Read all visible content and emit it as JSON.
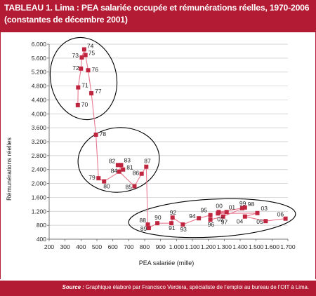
{
  "title": {
    "line1": "TABLEAU 1. Lima : PEA salariée occupée et rémunérations réelles, 1970-2006",
    "line2": "(constantes de décembre 2001)"
  },
  "source": {
    "prefix": "Source :",
    "text": "Graphique élaboré par Francisco Verdera, spécialiste de l’emploi au bureau de l’OIT à Lima."
  },
  "colors": {
    "accent": "#b31b34",
    "marker": "#c0253f",
    "line": "#e87a90"
  },
  "chart_data": {
    "type": "scatter",
    "xlabel": "PEA salariée (mille)",
    "ylabel": "Rémunérations réelles",
    "xlim": [
      200,
      1700
    ],
    "ylim": [
      400,
      6000
    ],
    "x_ticks": [
      "200",
      "300",
      "400",
      "500",
      "600",
      "700",
      "800",
      "900",
      "1.000",
      "1.100",
      "1.200",
      "1.300",
      "1.400",
      "1.500",
      "1.600",
      "1.700"
    ],
    "y_ticks": [
      "6.000",
      "5.600",
      "5.200",
      "4.800",
      "4.400",
      "4.000",
      "3.600",
      "3.200",
      "2.800",
      "2.400",
      "2.000",
      "1.600",
      "1.200",
      "800",
      "400"
    ],
    "grid": true,
    "connected": true,
    "points": [
      {
        "label": "70",
        "x": 380,
        "y": 4250
      },
      {
        "label": "71",
        "x": 382,
        "y": 4760
      },
      {
        "label": "72",
        "x": 400,
        "y": 5300
      },
      {
        "label": "73",
        "x": 405,
        "y": 5620
      },
      {
        "label": "74",
        "x": 420,
        "y": 5850
      },
      {
        "label": "75",
        "x": 428,
        "y": 5690
      },
      {
        "label": "76",
        "x": 445,
        "y": 5250
      },
      {
        "label": "77",
        "x": 465,
        "y": 4590
      },
      {
        "label": "78",
        "x": 494,
        "y": 3400
      },
      {
        "label": "79",
        "x": 510,
        "y": 2150
      },
      {
        "label": "80",
        "x": 545,
        "y": 2060
      },
      {
        "label": "81",
        "x": 664,
        "y": 2400
      },
      {
        "label": "82",
        "x": 632,
        "y": 2530
      },
      {
        "label": "83",
        "x": 652,
        "y": 2530
      },
      {
        "label": "84",
        "x": 640,
        "y": 2340
      },
      {
        "label": "85",
        "x": 736,
        "y": 1920
      },
      {
        "label": "86",
        "x": 781,
        "y": 2280
      },
      {
        "label": "87",
        "x": 810,
        "y": 2480
      },
      {
        "label": "88",
        "x": 820,
        "y": 820
      },
      {
        "label": "89",
        "x": 826,
        "y": 720
      },
      {
        "label": "90",
        "x": 880,
        "y": 860
      },
      {
        "label": "91",
        "x": 968,
        "y": 860
      },
      {
        "label": "92",
        "x": 975,
        "y": 1020
      },
      {
        "label": "93",
        "x": 1040,
        "y": 820
      },
      {
        "label": "94",
        "x": 1140,
        "y": 1000
      },
      {
        "label": "95",
        "x": 1213,
        "y": 1090
      },
      {
        "label": "96",
        "x": 1213,
        "y": 960
      },
      {
        "label": "97",
        "x": 1293,
        "y": 1050
      },
      {
        "label": "98",
        "x": 1430,
        "y": 1310
      },
      {
        "label": "99",
        "x": 1413,
        "y": 1290
      },
      {
        "label": "00",
        "x": 1265,
        "y": 1180
      },
      {
        "label": "01",
        "x": 1315,
        "y": 1180
      },
      {
        "label": "02",
        "x": 1260,
        "y": 1140
      },
      {
        "label": "03",
        "x": 1508,
        "y": 1150
      },
      {
        "label": "04",
        "x": 1430,
        "y": 1050
      },
      {
        "label": "05",
        "x": 1560,
        "y": 920
      },
      {
        "label": "06",
        "x": 1685,
        "y": 990
      }
    ]
  }
}
